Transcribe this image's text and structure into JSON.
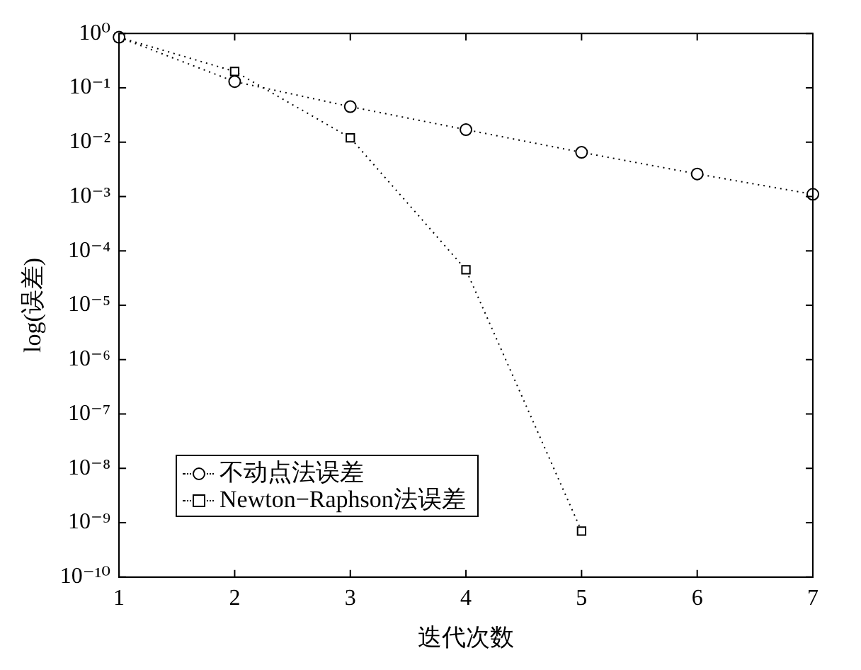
{
  "chart_data": {
    "type": "line",
    "xlabel": "迭代次数",
    "ylabel": "log(误差)",
    "x": [
      1,
      2,
      3,
      4,
      5,
      6,
      7
    ],
    "series": [
      {
        "name": "不动点法误差",
        "color": "#000000",
        "marker": "circle",
        "values": [
          0.85,
          0.13,
          0.045,
          0.017,
          0.0065,
          0.0026,
          0.0011
        ]
      },
      {
        "name": "Newton−Raphson法误差",
        "color": "#000000",
        "marker": "square",
        "values": [
          0.85,
          0.2,
          0.012,
          4.5e-05,
          7e-10,
          null,
          null
        ]
      }
    ],
    "log": "y",
    "xlim": [
      1,
      7
    ],
    "xticks": [
      1,
      2,
      3,
      4,
      5,
      6,
      7
    ],
    "ylim": [
      1e-10,
      1
    ],
    "yticks": [
      {
        "value": 1,
        "label": "10⁰"
      },
      {
        "value": 0.1,
        "label": "10⁻¹"
      },
      {
        "value": 0.01,
        "label": "10⁻²"
      },
      {
        "value": 0.001,
        "label": "10⁻³"
      },
      {
        "value": 0.0001,
        "label": "10⁻⁴"
      },
      {
        "value": 1e-05,
        "label": "10⁻⁵"
      },
      {
        "value": 1e-06,
        "label": "10⁻⁶"
      },
      {
        "value": 1e-07,
        "label": "10⁻⁷"
      },
      {
        "value": 1e-08,
        "label": "10⁻⁸"
      },
      {
        "value": 1e-09,
        "label": "10⁻⁹"
      },
      {
        "value": 1e-10,
        "label": "10⁻¹⁰"
      }
    ],
    "grid": false,
    "legend": "bottom left",
    "line_style": "dotted"
  }
}
